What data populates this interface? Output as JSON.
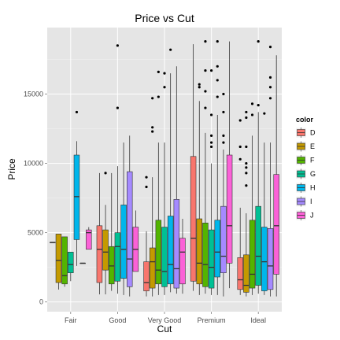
{
  "chart_data": {
    "type": "boxplot",
    "title": "Price vs Cut",
    "xlabel": "Cut",
    "ylabel": "Price",
    "ylim": [
      -700,
      19800
    ],
    "yticks": [
      0,
      5000,
      10000,
      15000
    ],
    "categories": [
      "Fair",
      "Good",
      "Very Good",
      "Premium",
      "Ideal"
    ],
    "legend": {
      "title": "color",
      "position": "right"
    },
    "series": [
      {
        "name": "D",
        "color": "#F8766D",
        "boxes": [
          {
            "lo": 4300,
            "q1": 4300,
            "med": 4300,
            "q3": 4300,
            "hi": 4300,
            "out": []
          },
          {
            "lo": 550,
            "q1": 1400,
            "med": 3800,
            "q3": 5500,
            "hi": 9300,
            "out": []
          },
          {
            "lo": 400,
            "q1": 800,
            "med": 1400,
            "q3": 2900,
            "hi": 5100,
            "out": [
              8300,
              9000
            ]
          },
          {
            "lo": 800,
            "q1": 1500,
            "med": 4600,
            "q3": 10500,
            "hi": 18600,
            "out": []
          },
          {
            "lo": 500,
            "q1": 900,
            "med": 1600,
            "q3": 3200,
            "hi": 6800,
            "out": [
              10300,
              11200,
              13100
            ]
          }
        ]
      },
      {
        "name": "E",
        "color": "#C49A00",
        "boxes": [
          {
            "lo": 900,
            "q1": 1400,
            "med": 3000,
            "q3": 4900,
            "hi": 4900,
            "out": []
          },
          {
            "lo": 550,
            "q1": 2300,
            "med": 3600,
            "q3": 5200,
            "hi": 7000,
            "out": [
              9300
            ]
          },
          {
            "lo": 400,
            "q1": 1000,
            "med": 2900,
            "q3": 3900,
            "hi": 9000,
            "out": [
              12300,
              12600,
              14700
            ]
          },
          {
            "lo": 500,
            "q1": 1300,
            "med": 2800,
            "q3": 6000,
            "hi": 14500,
            "out": [
              15500,
              15700
            ]
          },
          {
            "lo": 400,
            "q1": 700,
            "med": 1200,
            "q3": 3400,
            "hi": 6400,
            "out": [
              8400,
              9300,
              9700,
              10000,
              11200,
              13300,
              13700
            ]
          }
        ]
      },
      {
        "name": "F",
        "color": "#53B400",
        "boxes": [
          {
            "lo": 1100,
            "q1": 1300,
            "med": 1900,
            "q3": 4700,
            "hi": 4700,
            "out": []
          },
          {
            "lo": 800,
            "q1": 1300,
            "med": 2600,
            "q3": 4000,
            "hi": 9300,
            "out": []
          },
          {
            "lo": 500,
            "q1": 1300,
            "med": 2300,
            "q3": 5900,
            "hi": 11500,
            "out": [
              14800,
              16600
            ]
          },
          {
            "lo": 600,
            "q1": 1100,
            "med": 2700,
            "q3": 5700,
            "hi": 12200,
            "out": [
              14000,
              15200,
              16700,
              18800
            ]
          },
          {
            "lo": 500,
            "q1": 1000,
            "med": 2000,
            "q3": 5900,
            "hi": 12000,
            "out": [
              13500,
              14300
            ]
          }
        ]
      },
      {
        "name": "G",
        "color": "#00C094",
        "boxes": [
          {
            "lo": 1500,
            "q1": 2100,
            "med": 2700,
            "q3": 3600,
            "hi": 3600,
            "out": []
          },
          {
            "lo": 600,
            "q1": 1500,
            "med": 4000,
            "q3": 5000,
            "hi": 9800,
            "out": [
              14000,
              18500
            ]
          },
          {
            "lo": 500,
            "q1": 1100,
            "med": 2200,
            "q3": 5400,
            "hi": 11500,
            "out": [
              15500,
              16500
            ]
          },
          {
            "lo": 500,
            "q1": 1000,
            "med": 2500,
            "q3": 5200,
            "hi": 10000,
            "out": [
              11200,
              11500,
              12000,
              13500,
              16700
            ]
          },
          {
            "lo": 600,
            "q1": 1200,
            "med": 3300,
            "q3": 6900,
            "hi": 13700,
            "out": [
              14200,
              18800
            ]
          }
        ]
      },
      {
        "name": "H",
        "color": "#00B6EB",
        "boxes": [
          {
            "lo": 2600,
            "q1": 4500,
            "med": 7600,
            "q3": 10600,
            "hi": 11600,
            "out": [
              13700
            ]
          },
          {
            "lo": 500,
            "q1": 1700,
            "med": 3800,
            "q3": 7000,
            "hi": 11500,
            "out": []
          },
          {
            "lo": 700,
            "q1": 1300,
            "med": 2700,
            "q3": 6200,
            "hi": 16500,
            "out": [
              18200
            ]
          },
          {
            "lo": 500,
            "q1": 1800,
            "med": 3600,
            "q3": 5900,
            "hi": 13500,
            "out": [
              14800,
              16000,
              17000,
              18800
            ]
          },
          {
            "lo": 500,
            "q1": 800,
            "med": 2900,
            "q3": 5400,
            "hi": 11500,
            "out": [
              13600
            ]
          }
        ]
      },
      {
        "name": "I",
        "color": "#A58AFF",
        "boxes": [
          {
            "lo": 2800,
            "q1": 2800,
            "med": 2800,
            "q3": 2800,
            "hi": 2800,
            "out": []
          },
          {
            "lo": 400,
            "q1": 1100,
            "med": 3100,
            "q3": 9400,
            "hi": 12000,
            "out": []
          },
          {
            "lo": 600,
            "q1": 1000,
            "med": 2400,
            "q3": 7400,
            "hi": 17000,
            "out": []
          },
          {
            "lo": 400,
            "q1": 2100,
            "med": 3300,
            "q3": 6900,
            "hi": 11000,
            "out": [
              11500,
              12000,
              13700,
              15000
            ]
          },
          {
            "lo": 400,
            "q1": 900,
            "med": 2600,
            "q3": 5300,
            "hi": 11500,
            "out": [
              14700,
              15500,
              16200,
              18400
            ]
          }
        ]
      },
      {
        "name": "J",
        "color": "#FB61D7",
        "boxes": [
          {
            "lo": 3800,
            "q1": 3800,
            "med": 5000,
            "q3": 5200,
            "hi": 5400,
            "out": []
          },
          {
            "lo": 2200,
            "q1": 2200,
            "med": 3800,
            "q3": 5400,
            "hi": 6600,
            "out": []
          },
          {
            "lo": 600,
            "q1": 1300,
            "med": 3600,
            "q3": 4600,
            "hi": 6000,
            "out": []
          },
          {
            "lo": 1000,
            "q1": 2800,
            "med": 5500,
            "q3": 10600,
            "hi": 18800,
            "out": []
          },
          {
            "lo": 400,
            "q1": 2000,
            "med": 5500,
            "q3": 9200,
            "hi": 17800,
            "out": []
          }
        ]
      }
    ]
  }
}
